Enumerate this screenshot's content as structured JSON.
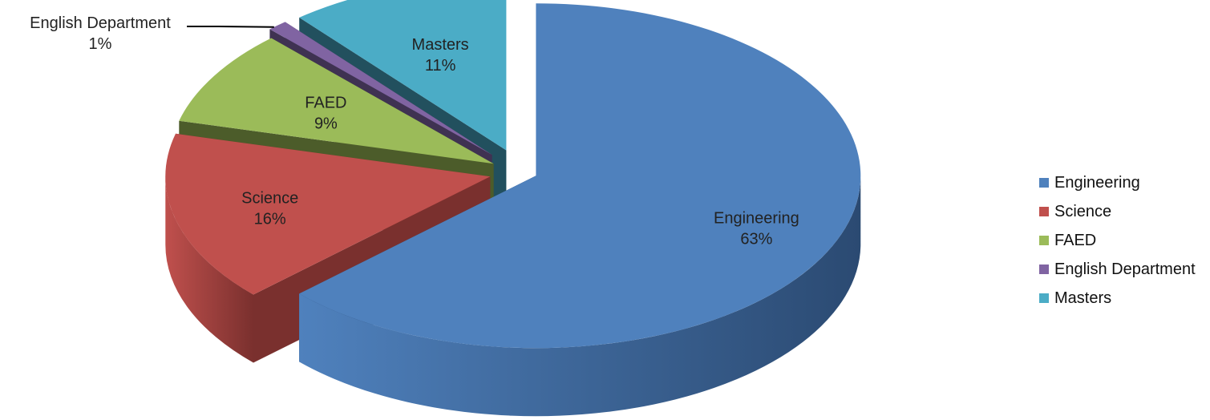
{
  "chart_data": {
    "type": "pie",
    "style": "3d-exploded",
    "title": "",
    "categories": [
      "Engineering",
      "Science",
      "FAED",
      "English Department",
      "Masters"
    ],
    "values": [
      63,
      16,
      9,
      1,
      11
    ],
    "labels": [
      {
        "name": "Engineering",
        "pct": "63%"
      },
      {
        "name": "Science",
        "pct": "16%"
      },
      {
        "name": "FAED",
        "pct": "9%"
      },
      {
        "name": "English Department",
        "pct": "1%"
      },
      {
        "name": "Masters",
        "pct": "11%"
      }
    ],
    "colors": [
      "#4F81BD",
      "#C0504D",
      "#9BBB59",
      "#8064A2",
      "#4BACC6"
    ],
    "side_colors": [
      "#2B4A72",
      "#7A302E",
      "#4C5C2A",
      "#3F3252",
      "#22505E"
    ],
    "legend": {
      "position": "right",
      "items": [
        "Engineering",
        "Science",
        "FAED",
        "English Department",
        "Masters"
      ]
    }
  }
}
